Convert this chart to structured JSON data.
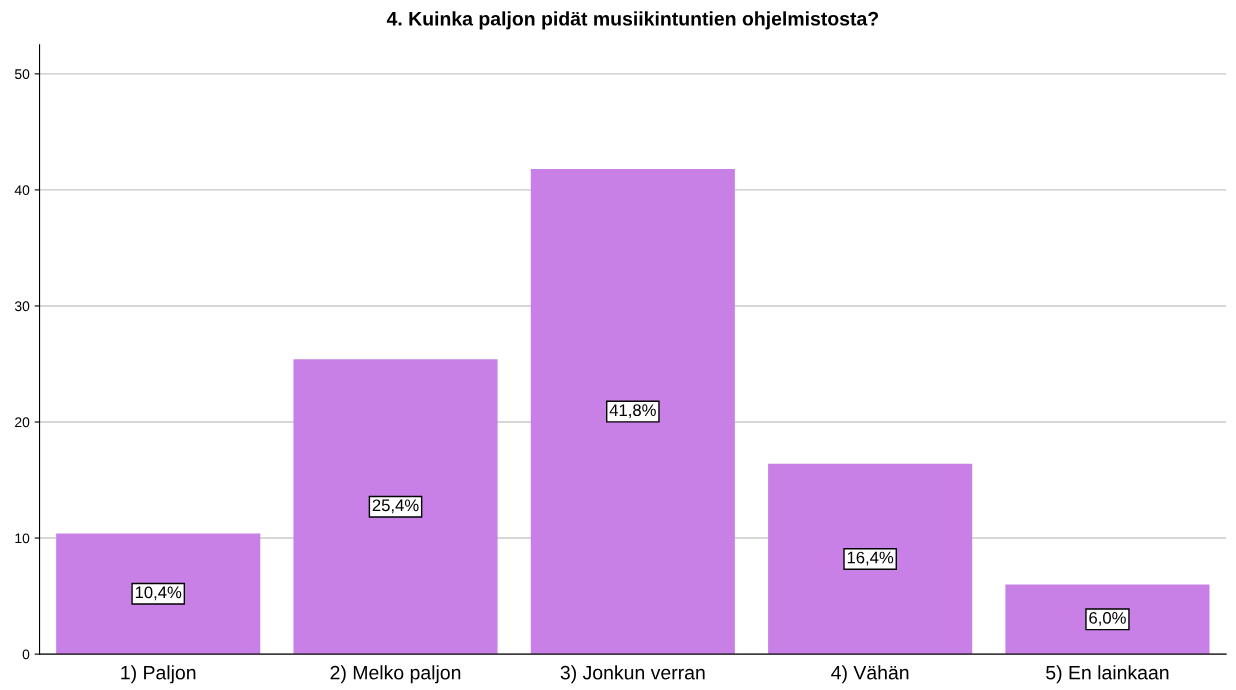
{
  "chart_data": {
    "type": "bar",
    "title": "4. Kuinka paljon pidät musiikintuntien ohjelmistosta?",
    "categories": [
      "1) Paljon",
      "2) Melko paljon",
      "3) Jonkun verran",
      "4) Vähän",
      "5) En lainkaan"
    ],
    "values": [
      10.4,
      25.4,
      41.8,
      16.4,
      6.0
    ],
    "value_labels": [
      "10,4%",
      "25,4%",
      "41,8%",
      "16,4%",
      "6,0%"
    ],
    "color": "#c880e6",
    "ylim": [
      0,
      52.5
    ],
    "yticks": [
      0,
      10,
      20,
      30,
      40,
      50
    ],
    "grid": "y"
  }
}
